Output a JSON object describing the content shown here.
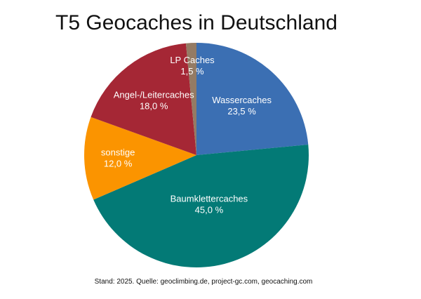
{
  "chart_data": {
    "type": "pie",
    "title": "T5 Geocaches in Deutschland",
    "slices": [
      {
        "name": "Wassercaches",
        "value": 23.5,
        "label": "23,5 %",
        "color": "#3b6fb3"
      },
      {
        "name": "Baumklettercaches",
        "value": 45.0,
        "label": "45,0 %",
        "color": "#037a76"
      },
      {
        "name": "sonstige",
        "value": 12.0,
        "label": "12,0 %",
        "color": "#fb9400"
      },
      {
        "name": "Angel-/Leitercaches",
        "value": 18.0,
        "label": "18,0 %",
        "color": "#a52735"
      },
      {
        "name": "LP Caches",
        "value": 1.5,
        "label": "1,5 %",
        "color": "#947b64"
      }
    ]
  },
  "footer": {
    "source": "Stand: 2025. Quelle: geoclimbing.de, project-gc.com, geocaching.com"
  }
}
